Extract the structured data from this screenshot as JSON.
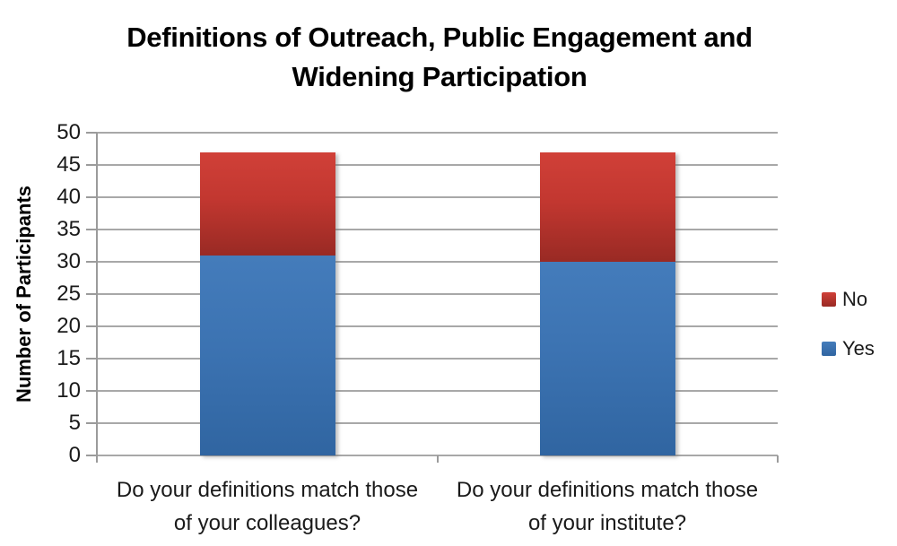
{
  "chart_data": {
    "type": "bar",
    "stacked": true,
    "title": "Definitions of Outreach, Public Engagement and Widening Participation",
    "categories": [
      "Do your definitions match those of your colleagues?",
      "Do your definitions match those of your institute?"
    ],
    "series": [
      {
        "name": "Yes",
        "values": [
          31,
          30
        ],
        "color": "#3c73b2",
        "color_top": "#447cbb",
        "color_bottom": "#3065a1"
      },
      {
        "name": "No",
        "values": [
          16,
          17
        ],
        "color": "#c23730",
        "color_top": "#d04038",
        "color_bottom": "#992a24"
      }
    ],
    "totals": [
      47,
      47
    ],
    "xlabel": "",
    "ylabel": "Number of Participants",
    "ylim": [
      0,
      50
    ],
    "yticks": [
      0,
      5,
      10,
      15,
      20,
      25,
      30,
      35,
      40,
      45,
      50
    ],
    "grid": true,
    "legend_position": "right",
    "legend_order": [
      "No",
      "Yes"
    ],
    "colors": {
      "gridline": "#a8a8a8",
      "axis": "#9b9b9b",
      "text": "#1a1a1a",
      "title": "#000000"
    }
  }
}
